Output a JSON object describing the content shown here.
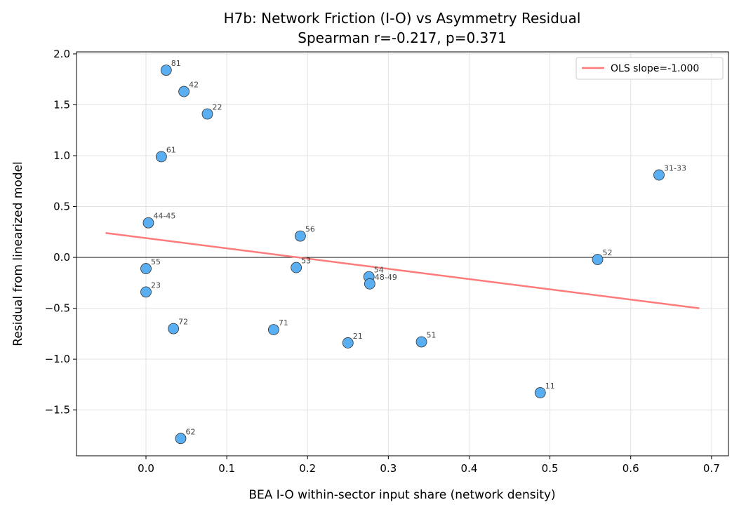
{
  "chart_data": {
    "type": "scatter",
    "title": "H7b: Network Friction (I-O) vs Asymmetry Residual",
    "subtitle": "Spearman r=-0.217, p=0.371",
    "xlabel": "BEA I-O within-sector input share (network density)",
    "ylabel": "Residual from linearized model",
    "xlim": [
      -0.086,
      0.721
    ],
    "ylim": [
      -1.95,
      2.02
    ],
    "xticks": [
      0.0,
      0.1,
      0.2,
      0.3,
      0.4,
      0.5,
      0.6,
      0.7
    ],
    "xtick_labels": [
      "0.0",
      "0.1",
      "0.2",
      "0.3",
      "0.4",
      "0.5",
      "0.6",
      "0.7"
    ],
    "yticks": [
      -1.5,
      -1.0,
      -0.5,
      0.0,
      0.5,
      1.0,
      1.5,
      2.0
    ],
    "ytick_labels": [
      "−1.5",
      "−1.0",
      "−0.5",
      "0.0",
      "0.5",
      "1.0",
      "1.5",
      "2.0"
    ],
    "grid": true,
    "zero_line": true,
    "point_color": "#5aaff2",
    "points": [
      {
        "label": "81",
        "x": 0.025,
        "y": 1.84
      },
      {
        "label": "42",
        "x": 0.047,
        "y": 1.63
      },
      {
        "label": "22",
        "x": 0.076,
        "y": 1.41
      },
      {
        "label": "61",
        "x": 0.019,
        "y": 0.99
      },
      {
        "label": "31-33",
        "x": 0.635,
        "y": 0.81
      },
      {
        "label": "44-45",
        "x": 0.003,
        "y": 0.34
      },
      {
        "label": "56",
        "x": 0.191,
        "y": 0.21
      },
      {
        "label": "52",
        "x": 0.559,
        "y": -0.02
      },
      {
        "label": "55",
        "x": 0.0,
        "y": -0.11
      },
      {
        "label": "53",
        "x": 0.186,
        "y": -0.1
      },
      {
        "label": "54",
        "x": 0.276,
        "y": -0.19
      },
      {
        "label": "48-49",
        "x": 0.277,
        "y": -0.26
      },
      {
        "label": "23",
        "x": 0.0,
        "y": -0.34
      },
      {
        "label": "72",
        "x": 0.034,
        "y": -0.7
      },
      {
        "label": "71",
        "x": 0.158,
        "y": -0.71
      },
      {
        "label": "21",
        "x": 0.25,
        "y": -0.84
      },
      {
        "label": "51",
        "x": 0.341,
        "y": -0.83
      },
      {
        "label": "11",
        "x": 0.488,
        "y": -1.33
      },
      {
        "label": "62",
        "x": 0.043,
        "y": -1.78
      }
    ],
    "fit_line": {
      "name": "OLS slope=-1.000",
      "color": "#ff7b7b",
      "x": [
        -0.05,
        0.685
      ],
      "y": [
        0.24,
        -0.5
      ]
    },
    "legend_position": "top-right"
  }
}
